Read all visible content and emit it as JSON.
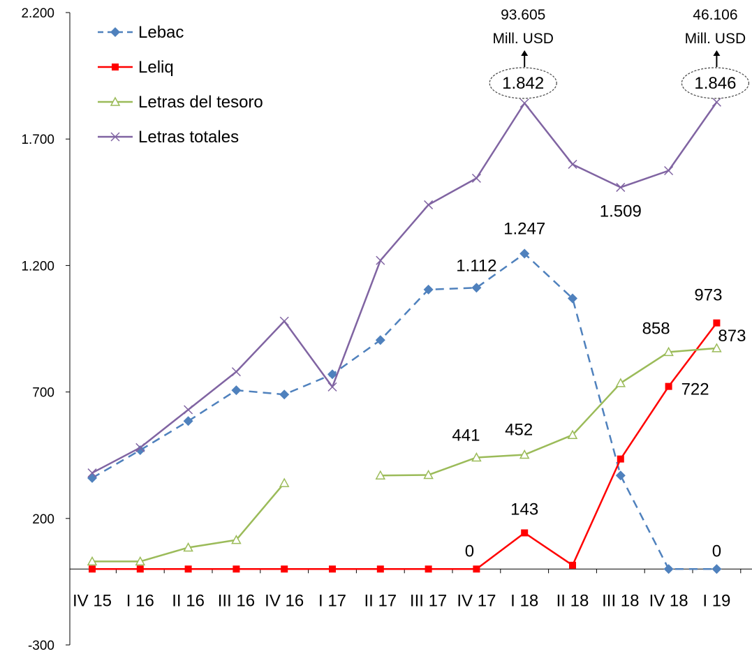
{
  "chart_data": {
    "type": "line",
    "title": "",
    "xlabel": "",
    "ylabel": "",
    "ylim": [
      -300,
      2200
    ],
    "y_ticks": [
      -300,
      200,
      700,
      1200,
      1700,
      2200
    ],
    "y_tick_labels": [
      "-300",
      "200",
      "700",
      "1.200",
      "1.700",
      "2.200"
    ],
    "grid": false,
    "legend_position": "top-left",
    "categories": [
      "IV 15",
      "I 16",
      "II 16",
      "III 16",
      "IV 16",
      "I 17",
      "II 17",
      "III 17",
      "IV 17",
      "I 18",
      "II 18",
      "III 18",
      "IV 18",
      "I 19"
    ],
    "series": [
      {
        "name": "Lebac",
        "color": "#4F81BD",
        "dash": true,
        "marker": "diamond",
        "values": [
          360,
          470,
          585,
          707,
          690,
          770,
          905,
          1105,
          1112,
          1247,
          1070,
          370,
          0,
          0
        ]
      },
      {
        "name": "Leliq",
        "color": "#FF0000",
        "dash": false,
        "marker": "square",
        "values": [
          0,
          0,
          0,
          0,
          0,
          0,
          0,
          0,
          0,
          143,
          15,
          435,
          722,
          973
        ]
      },
      {
        "name": "Letras del tesoro",
        "color": "#9BBB59",
        "dash": false,
        "marker": "triangle",
        "values": [
          30,
          30,
          85,
          115,
          340,
          null,
          370,
          372,
          441,
          452,
          530,
          735,
          858,
          873
        ]
      },
      {
        "name": "Letras totales",
        "color": "#8064A2",
        "dash": false,
        "marker": "x",
        "values": [
          380,
          480,
          630,
          780,
          980,
          720,
          1220,
          1440,
          1545,
          1842,
          1600,
          1509,
          1575,
          1846
        ]
      }
    ],
    "data_labels": [
      {
        "series": 0,
        "index": 8,
        "text": "1.112"
      },
      {
        "series": 0,
        "index": 9,
        "text": "1.247"
      },
      {
        "series": 1,
        "index": 8,
        "text": "0"
      },
      {
        "series": 1,
        "index": 9,
        "text": "143"
      },
      {
        "series": 1,
        "index": 12,
        "text": "722"
      },
      {
        "series": 1,
        "index": 13,
        "text": "973"
      },
      {
        "series": 0,
        "index": 13,
        "text": "0"
      },
      {
        "series": 2,
        "index": 8,
        "text": "441"
      },
      {
        "series": 2,
        "index": 9,
        "text": "452"
      },
      {
        "series": 2,
        "index": 12,
        "text": "858"
      },
      {
        "series": 2,
        "index": 13,
        "text": "873"
      },
      {
        "series": 3,
        "index": 11,
        "text": "1.509"
      }
    ],
    "callouts": [
      {
        "index": 9,
        "value_text": "1.842",
        "line1": "93.605",
        "line2": "Mill. USD"
      },
      {
        "index": 13,
        "value_text": "1.846",
        "line1": "46.106",
        "line2": "Mill. USD"
      }
    ]
  }
}
